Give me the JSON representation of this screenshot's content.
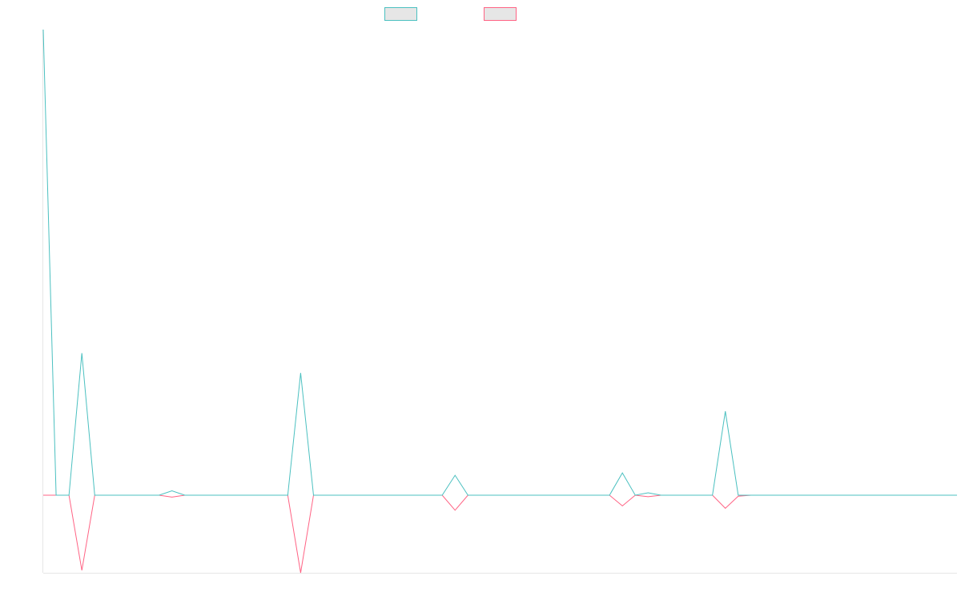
{
  "chart_data": {
    "type": "line",
    "title": "",
    "xlabel": "",
    "ylabel": "",
    "grid": false,
    "legend": "top-center",
    "ylim": [
      -1.6,
      9.6
    ],
    "x": [
      0,
      1,
      2,
      3,
      4,
      5,
      6,
      7,
      8,
      9,
      10,
      11,
      12,
      13,
      14,
      15,
      16,
      17,
      18,
      19,
      20,
      21,
      22,
      23,
      24,
      25,
      26,
      27,
      28,
      29,
      30,
      31,
      32,
      33,
      34,
      35,
      36,
      37,
      38,
      39,
      40,
      41,
      42,
      43,
      44,
      45,
      46,
      47,
      48,
      49,
      50,
      51,
      52,
      53,
      54,
      55,
      56,
      57,
      58,
      59,
      60,
      61,
      62,
      63,
      64,
      65,
      66,
      67,
      68,
      69,
      70,
      71
    ],
    "series": [
      {
        "name": "",
        "color": "#4bc0c0",
        "values": [
          9.6,
          0,
          0,
          2.93,
          0,
          0,
          0,
          0,
          0,
          0,
          0.09,
          0,
          0,
          0,
          0,
          0,
          0,
          0,
          0,
          0,
          2.52,
          0,
          0,
          0,
          0,
          0,
          0,
          0,
          0,
          0,
          0,
          0,
          0.41,
          0,
          0,
          0,
          0,
          0,
          0,
          0,
          0,
          0,
          0,
          0,
          0,
          0.46,
          0,
          0.05,
          0,
          0,
          0,
          0,
          0,
          1.73,
          0,
          0,
          0,
          0,
          0,
          0,
          0,
          0,
          0,
          0,
          0,
          0,
          0,
          0,
          0,
          0,
          0,
          0
        ]
      },
      {
        "name": "",
        "color": "#ff6384",
        "values": [
          0,
          0,
          0,
          -1.55,
          0,
          0,
          0,
          0,
          0,
          0,
          -0.04,
          0,
          0,
          0,
          0,
          0,
          0,
          0,
          0,
          0,
          -1.6,
          0,
          0,
          0,
          0,
          0,
          0,
          0,
          0,
          0,
          0,
          0,
          -0.31,
          0,
          0,
          0,
          0,
          0,
          0,
          0,
          0,
          0,
          0,
          0,
          0,
          -0.22,
          0,
          -0.03,
          0,
          0,
          0,
          0,
          0,
          -0.27,
          -0.02,
          0,
          0,
          0,
          0,
          0,
          0,
          0,
          0,
          0,
          0,
          0,
          0,
          0,
          0,
          0,
          0,
          0
        ]
      }
    ]
  }
}
